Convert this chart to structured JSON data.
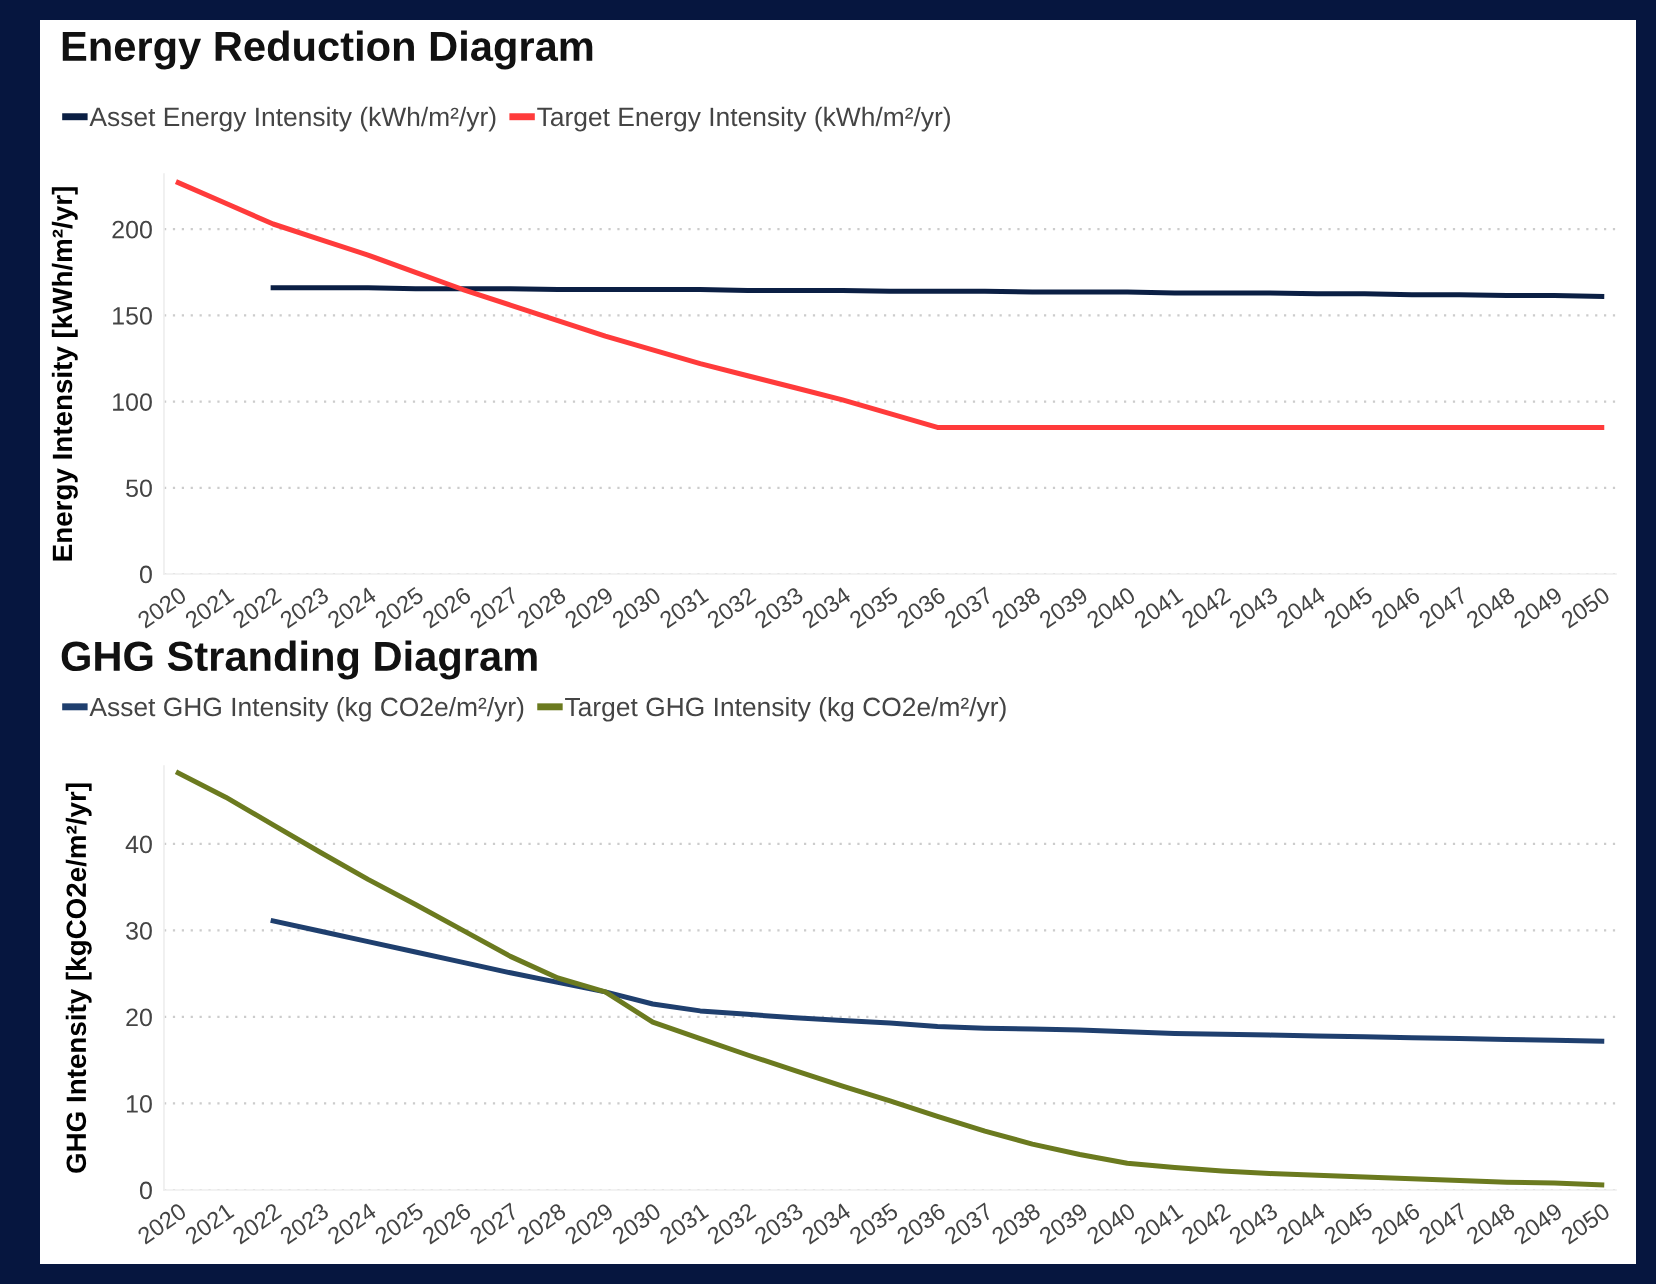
{
  "chart_data": [
    {
      "type": "line",
      "title": "Energy Reduction Diagram",
      "ylabel": "Energy Intensity [kWh/m²/yr]",
      "categories": [
        "2020",
        "2021",
        "2022",
        "2023",
        "2024",
        "2025",
        "2026",
        "2027",
        "2028",
        "2029",
        "2030",
        "2031",
        "2032",
        "2033",
        "2034",
        "2035",
        "2036",
        "2037",
        "2038",
        "2039",
        "2040",
        "2041",
        "2042",
        "2043",
        "2044",
        "2045",
        "2046",
        "2047",
        "2048",
        "2049",
        "2050"
      ],
      "series": [
        {
          "name": "Asset Energy Intensity (kWh/m²/yr)",
          "color": "#0b1f44",
          "values": [
            null,
            null,
            166,
            166,
            166,
            165.5,
            165.5,
            165.5,
            165,
            165,
            165,
            165,
            164.5,
            164.5,
            164.5,
            164,
            164,
            164,
            163.5,
            163.5,
            163.5,
            163,
            163,
            163,
            162.5,
            162.5,
            162,
            162,
            161.5,
            161.5,
            161
          ]
        },
        {
          "name": "Target Energy Intensity (kWh/m²/yr)",
          "color": "#ff3b3b",
          "values": [
            227,
            215,
            203,
            194,
            185,
            175,
            165,
            156,
            147,
            138,
            130,
            122,
            115,
            108,
            101,
            93,
            85,
            85,
            85,
            85,
            85,
            85,
            85,
            85,
            85,
            85,
            85,
            85,
            85,
            85,
            85
          ]
        }
      ],
      "ylim": [
        0,
        232
      ],
      "yticks": [
        0,
        50,
        100,
        150,
        200
      ],
      "grid": "y",
      "legend": "top left",
      "marker": "none",
      "line_style": "solid"
    },
    {
      "type": "line",
      "title": "GHG Stranding Diagram",
      "ylabel": "GHG Intensity [kgCO2e/m²/yr]",
      "categories": [
        "2020",
        "2021",
        "2022",
        "2023",
        "2024",
        "2025",
        "2026",
        "2027",
        "2028",
        "2029",
        "2030",
        "2031",
        "2032",
        "2033",
        "2034",
        "2035",
        "2036",
        "2037",
        "2038",
        "2039",
        "2040",
        "2041",
        "2042",
        "2043",
        "2044",
        "2045",
        "2046",
        "2047",
        "2048",
        "2049",
        "2050"
      ],
      "series": [
        {
          "name": "Asset GHG Intensity (kg CO2e/m²/yr)",
          "color": "#1f3f6e",
          "values": [
            null,
            null,
            31.1,
            29.9,
            28.7,
            27.5,
            26.3,
            25.1,
            24.0,
            22.9,
            21.5,
            20.7,
            20.3,
            19.9,
            19.6,
            19.3,
            18.9,
            18.7,
            18.6,
            18.5,
            18.3,
            18.1,
            18.0,
            17.9,
            17.8,
            17.7,
            17.6,
            17.5,
            17.4,
            17.3,
            17.2
          ]
        },
        {
          "name": "Target GHG Intensity (kg CO2e/m²/yr)",
          "color": "#6b7a1f",
          "values": [
            48.2,
            45.4,
            42.2,
            39.0,
            35.9,
            33.0,
            30.0,
            27.0,
            24.5,
            22.9,
            19.4,
            17.5,
            15.6,
            13.8,
            12.0,
            10.3,
            8.5,
            6.8,
            5.3,
            4.1,
            3.1,
            2.6,
            2.2,
            1.9,
            1.7,
            1.5,
            1.3,
            1.1,
            0.9,
            0.8,
            0.6
          ]
        }
      ],
      "ylim": [
        0,
        49
      ],
      "yticks": [
        0,
        10,
        20,
        30,
        40
      ],
      "grid": "y",
      "legend": "top left",
      "marker": "none",
      "line_style": "solid"
    }
  ]
}
